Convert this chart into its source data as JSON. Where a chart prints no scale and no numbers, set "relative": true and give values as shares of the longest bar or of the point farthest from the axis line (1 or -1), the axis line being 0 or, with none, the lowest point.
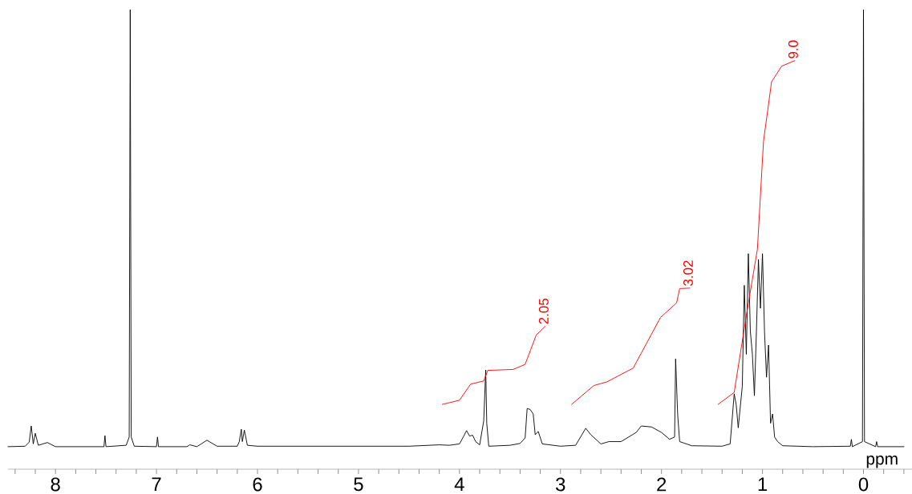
{
  "chart_data": {
    "type": "line",
    "relative": true,
    "xlabel": "ppm",
    "xlim": [
      8.47,
      -0.48
    ],
    "xticks": [
      {
        "value": 8.4,
        "label": null
      },
      {
        "value": 8.2,
        "label": null
      },
      8,
      {
        "value": 7.8,
        "label": null
      },
      {
        "value": 7.6,
        "label": null
      },
      {
        "value": 7.4,
        "label": null
      },
      {
        "value": 7.2,
        "label": null
      },
      7,
      {
        "value": 6.8,
        "label": null
      },
      {
        "value": 6.6,
        "label": null
      },
      {
        "value": 6.4,
        "label": null
      },
      {
        "value": 6.2,
        "label": null
      },
      6,
      {
        "value": 5.8,
        "label": null
      },
      {
        "value": 5.6,
        "label": null
      },
      {
        "value": 5.4,
        "label": null
      },
      {
        "value": 5.2,
        "label": null
      },
      5,
      {
        "value": 4.8,
        "label": null
      },
      {
        "value": 4.6,
        "label": null
      },
      {
        "value": 4.4,
        "label": null
      },
      {
        "value": 4.2,
        "label": null
      },
      4,
      {
        "value": 3.8,
        "label": null
      },
      {
        "value": 3.6,
        "label": null
      },
      {
        "value": 3.4,
        "label": null
      },
      {
        "value": 3.2,
        "label": null
      },
      3,
      {
        "value": 2.8,
        "label": null
      },
      {
        "value": 2.6,
        "label": null
      },
      {
        "value": 2.4,
        "label": null
      },
      {
        "value": 2.2,
        "label": null
      },
      2,
      {
        "value": 1.8,
        "label": null
      },
      {
        "value": 1.6,
        "label": null
      },
      {
        "value": 1.4,
        "label": null
      },
      {
        "value": 1.2,
        "label": null
      },
      1,
      {
        "value": 0.8,
        "label": null
      },
      {
        "value": 0.6,
        "label": null
      },
      {
        "value": 0.4,
        "label": null
      },
      {
        "value": 0.2,
        "label": null
      },
      0,
      {
        "value": -0.2,
        "label": null
      },
      {
        "value": -0.4,
        "label": null
      }
    ],
    "series": [
      {
        "color": "#000000",
        "x": [
          8.47,
          8.3,
          8.26,
          8.24,
          8.22,
          8.2,
          8.17,
          8.08,
          8.0,
          7.52,
          7.51,
          7.5,
          7.3,
          7.27,
          7.26,
          7.25,
          7.22,
          7.0,
          6.99,
          6.98,
          6.7,
          6.67,
          6.6,
          6.5,
          6.4,
          6.2,
          6.18,
          6.16,
          6.15,
          6.13,
          6.1,
          6.0,
          4.5,
          4.2,
          4.1,
          4.0,
          3.96,
          3.93,
          3.9,
          3.87,
          3.84,
          3.8,
          3.76,
          3.74,
          3.73,
          3.71,
          3.5,
          3.4,
          3.35,
          3.33,
          3.3,
          3.27,
          3.25,
          3.22,
          3.18,
          3.0,
          2.85,
          2.75,
          2.7,
          2.6,
          2.52,
          2.4,
          2.25,
          2.2,
          2.1,
          2.0,
          1.92,
          1.87,
          1.86,
          1.84,
          1.82,
          1.7,
          1.4,
          1.32,
          1.28,
          1.26,
          1.24,
          1.2,
          1.18,
          1.16,
          1.14,
          1.12,
          1.1,
          1.08,
          1.06,
          1.04,
          1.02,
          1.0,
          0.98,
          0.96,
          0.94,
          0.92,
          0.9,
          0.88,
          0.85,
          0.8,
          0.5,
          0.13,
          0.12,
          0.11,
          0.01,
          0.0,
          -0.01,
          -0.12,
          -0.13,
          -0.14,
          -0.4
        ],
        "values": [
          0.049,
          0.05,
          0.059,
          0.094,
          0.055,
          0.078,
          0.052,
          0.058,
          0.049,
          0.049,
          0.073,
          0.049,
          0.052,
          0.07,
          1.0,
          0.07,
          0.05,
          0.049,
          0.07,
          0.049,
          0.049,
          0.053,
          0.049,
          0.063,
          0.05,
          0.05,
          0.06,
          0.087,
          0.06,
          0.085,
          0.052,
          0.05,
          0.05,
          0.053,
          0.052,
          0.055,
          0.071,
          0.084,
          0.072,
          0.074,
          0.06,
          0.053,
          0.105,
          0.216,
          0.1,
          0.05,
          0.052,
          0.056,
          0.068,
          0.132,
          0.13,
          0.12,
          0.075,
          0.082,
          0.055,
          0.05,
          0.052,
          0.089,
          0.075,
          0.055,
          0.06,
          0.06,
          0.08,
          0.094,
          0.092,
          0.08,
          0.065,
          0.07,
          0.24,
          0.12,
          0.06,
          0.051,
          0.05,
          0.055,
          0.164,
          0.14,
          0.09,
          0.18,
          0.4,
          0.25,
          0.469,
          0.3,
          0.25,
          0.16,
          0.3,
          0.456,
          0.35,
          0.469,
          0.3,
          0.2,
          0.27,
          0.1,
          0.12,
          0.07,
          0.06,
          0.051,
          0.049,
          0.05,
          0.065,
          0.049,
          0.06,
          1.0,
          0.06,
          0.049,
          0.06,
          0.049,
          0.049
        ]
      },
      {
        "color": "#ff0000",
        "x": [
          4.17,
          4.0,
          3.89,
          3.76,
          3.72,
          3.47,
          3.35,
          3.24,
          3.15
        ],
        "values": [
          0.141,
          0.15,
          0.185,
          0.192,
          0.215,
          0.217,
          0.228,
          0.292,
          0.311
        ]
      },
      {
        "color": "#ff0000",
        "x": [
          2.89,
          2.67,
          2.54,
          2.28,
          2.01,
          1.85,
          1.82,
          1.72
        ],
        "values": [
          0.141,
          0.182,
          0.19,
          0.22,
          0.33,
          0.362,
          0.393,
          0.394
        ]
      },
      {
        "color": "#ff0000",
        "x": [
          1.44,
          1.28,
          1.16,
          1.05,
          0.99,
          0.91,
          0.81,
          0.68
        ],
        "values": [
          0.141,
          0.167,
          0.334,
          0.479,
          0.713,
          0.843,
          0.877,
          0.889
        ]
      }
    ],
    "annotations": [
      {
        "text": "2.05",
        "x": 3.15,
        "y": 0.311
      },
      {
        "text": "3.02",
        "x": 1.72,
        "y": 0.394
      },
      {
        "text": "9.0",
        "x": 0.68,
        "y": 0.889
      }
    ]
  }
}
